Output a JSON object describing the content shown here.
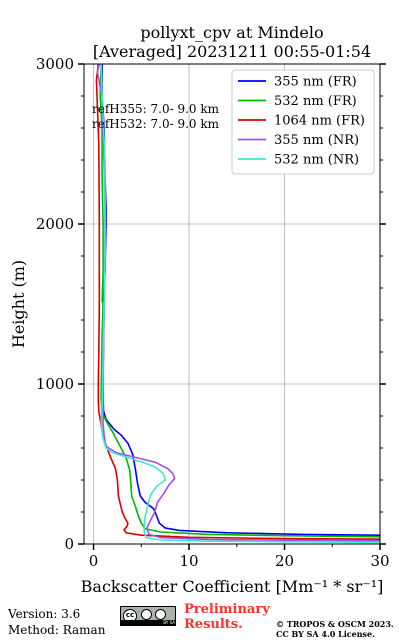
{
  "chart_data": {
    "type": "line",
    "title": [
      "pollyxt_cpv at Mindelo",
      "[Averaged] 20231211 00:55-01:54"
    ],
    "xlabel": "Backscatter Coefficient [Mm⁻¹ * sr⁻¹]",
    "ylabel": "Height (m)",
    "xlim": [
      -1,
      30
    ],
    "ylim": [
      0,
      3000
    ],
    "xticks": [
      0,
      10,
      20,
      30
    ],
    "yticks": [
      0,
      1000,
      2000,
      3000
    ],
    "grid": true,
    "legend_position": "top-right",
    "annotations": [
      "refH355:  7.0- 9.0 km",
      "refH532:  7.0- 9.0 km"
    ],
    "series": [
      {
        "name": "355 nm (FR)",
        "color": "#0000ff",
        "points": [
          [
            30,
            55
          ],
          [
            22,
            60
          ],
          [
            14,
            70
          ],
          [
            9,
            85
          ],
          [
            7.5,
            100
          ],
          [
            6.9,
            130
          ],
          [
            6.6,
            175
          ],
          [
            6.3,
            220
          ],
          [
            5.4,
            260
          ],
          [
            4.9,
            300
          ],
          [
            4.6,
            380
          ],
          [
            4.4,
            460
          ],
          [
            4.1,
            560
          ],
          [
            3.6,
            630
          ],
          [
            2.9,
            680
          ],
          [
            2.1,
            720
          ],
          [
            1.3,
            780
          ],
          [
            1.05,
            830
          ],
          [
            1,
            900
          ],
          [
            1,
            1000
          ],
          [
            1,
            1100
          ],
          [
            1.05,
            1300
          ],
          [
            1.1,
            1500
          ],
          [
            1.0,
            1520
          ],
          [
            1.2,
            1700
          ],
          [
            1.3,
            2000
          ],
          [
            1.3,
            2100
          ],
          [
            1.2,
            2300
          ],
          [
            1.1,
            2600
          ],
          [
            0.9,
            2800
          ],
          [
            0.9,
            3000
          ]
        ]
      },
      {
        "name": "532 nm (FR)",
        "color": "#00bb00",
        "points": [
          [
            30,
            45
          ],
          [
            20,
            52
          ],
          [
            12,
            60
          ],
          [
            7,
            75
          ],
          [
            5.4,
            95
          ],
          [
            5.0,
            130
          ],
          [
            4.7,
            175
          ],
          [
            4.4,
            230
          ],
          [
            4.0,
            300
          ],
          [
            3.9,
            380
          ],
          [
            3.8,
            460
          ],
          [
            3.4,
            540
          ],
          [
            2.7,
            620
          ],
          [
            2.0,
            700
          ],
          [
            1.3,
            770
          ],
          [
            0.9,
            820
          ],
          [
            0.8,
            900
          ],
          [
            0.8,
            1000
          ],
          [
            0.85,
            1100
          ],
          [
            0.9,
            1300
          ],
          [
            1.0,
            1500
          ],
          [
            0.9,
            1520
          ],
          [
            1.0,
            1700
          ],
          [
            1.0,
            2000
          ],
          [
            0.9,
            2300
          ],
          [
            0.9,
            2600
          ],
          [
            0.7,
            2800
          ],
          [
            0.8,
            3000
          ]
        ]
      },
      {
        "name": "1064 nm (FR)",
        "color": "#dd0000",
        "points": [
          [
            30,
            30
          ],
          [
            18,
            35
          ],
          [
            10,
            42
          ],
          [
            5,
            55
          ],
          [
            3.4,
            70
          ],
          [
            3.2,
            90
          ],
          [
            3.5,
            110
          ],
          [
            3.6,
            130
          ],
          [
            3.3,
            160
          ],
          [
            3.0,
            200
          ],
          [
            2.8,
            250
          ],
          [
            2.6,
            300
          ],
          [
            2.5,
            400
          ],
          [
            2.3,
            470
          ],
          [
            1.8,
            540
          ],
          [
            1.4,
            600
          ],
          [
            1.0,
            670
          ],
          [
            0.75,
            760
          ],
          [
            0.55,
            830
          ],
          [
            0.5,
            900
          ],
          [
            0.5,
            1000
          ],
          [
            0.55,
            1200
          ],
          [
            0.6,
            1500
          ],
          [
            0.6,
            2000
          ],
          [
            0.55,
            2500
          ],
          [
            0.3,
            2900
          ],
          [
            0.5,
            3000
          ]
        ]
      },
      {
        "name": "355 nm (NR)",
        "color": "#a050f0",
        "points": [
          [
            30,
            20
          ],
          [
            20,
            24
          ],
          [
            12,
            28
          ],
          [
            7,
            40
          ],
          [
            5.8,
            60
          ],
          [
            5.6,
            100
          ],
          [
            5.9,
            140
          ],
          [
            6.4,
            200
          ],
          [
            6.7,
            260
          ],
          [
            7.4,
            320
          ],
          [
            7.9,
            370
          ],
          [
            8.5,
            410
          ],
          [
            8.3,
            440
          ],
          [
            7.8,
            470
          ],
          [
            6.5,
            510
          ],
          [
            4.5,
            540
          ],
          [
            2.4,
            570
          ],
          [
            1.3,
            610
          ],
          [
            1.1,
            680
          ],
          [
            1.0,
            750
          ],
          [
            1.0,
            850
          ],
          [
            1.0,
            1000
          ],
          [
            1.05,
            1200
          ],
          [
            1.1,
            1500
          ],
          [
            1.2,
            1800
          ],
          [
            1.2,
            2100
          ],
          [
            1.1,
            2400
          ],
          [
            0.9,
            2800
          ],
          [
            0.4,
            2950
          ],
          [
            0.6,
            3000
          ]
        ]
      },
      {
        "name": "532 nm (NR)",
        "color": "#40e8d0",
        "points": [
          [
            30,
            10
          ],
          [
            20,
            14
          ],
          [
            12,
            18
          ],
          [
            7,
            25
          ],
          [
            5.5,
            40
          ],
          [
            5.3,
            80
          ],
          [
            5.3,
            120
          ],
          [
            5.4,
            170
          ],
          [
            5.6,
            220
          ],
          [
            5.8,
            270
          ],
          [
            6.0,
            310
          ],
          [
            6.6,
            360
          ],
          [
            7.5,
            400
          ],
          [
            7.3,
            440
          ],
          [
            6.5,
            480
          ],
          [
            5.2,
            510
          ],
          [
            3.6,
            540
          ],
          [
            2.0,
            570
          ],
          [
            1.3,
            600
          ],
          [
            1.0,
            660
          ],
          [
            0.8,
            760
          ],
          [
            0.9,
            850
          ],
          [
            0.95,
            1000
          ],
          [
            1.0,
            1200
          ],
          [
            1.1,
            1500
          ],
          [
            1.2,
            1800
          ],
          [
            1.2,
            2100
          ],
          [
            1.2,
            2400
          ],
          [
            0.9,
            2800
          ],
          [
            0.8,
            3000
          ]
        ]
      }
    ]
  },
  "footer": {
    "version": "Version: 3.6",
    "method": "Method: Raman",
    "preliminary": [
      "Preliminary",
      "Results."
    ],
    "copyright": [
      "© TROPOS & OSCM 2023.",
      "CC BY SA 4.0 License."
    ],
    "badge_text": "BY  SA"
  }
}
